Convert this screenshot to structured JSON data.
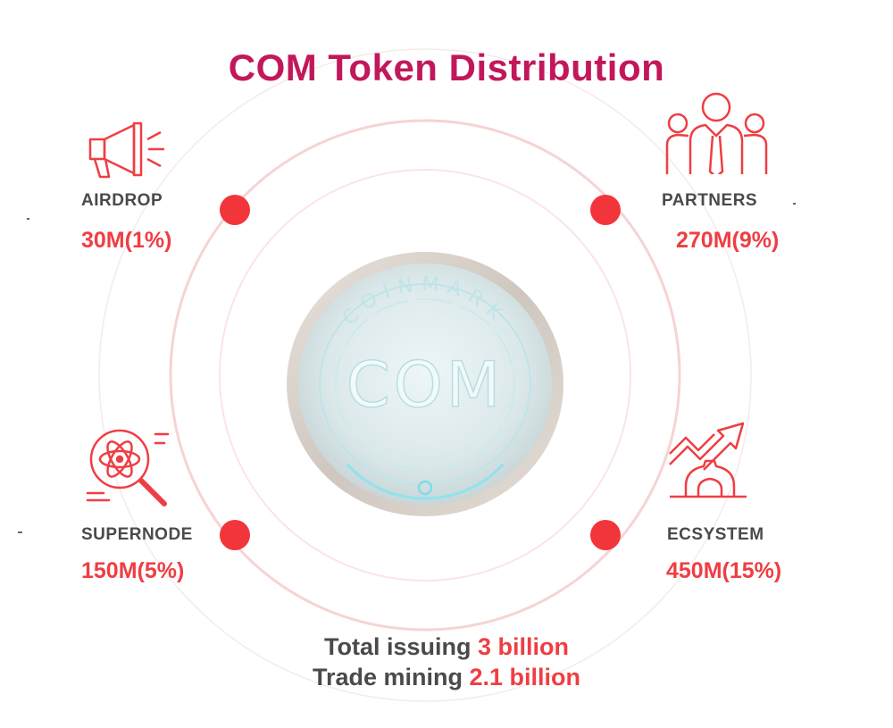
{
  "title": "COM Token Distribution",
  "coin": {
    "ring_text": "COINMARK",
    "center_text": "COM"
  },
  "items": [
    {
      "label": "AIRDROP",
      "value": "30M(1%)",
      "icon": "megaphone-icon"
    },
    {
      "label": "PARTNERS",
      "value": "270M(9%)",
      "icon": "people-icon"
    },
    {
      "label": "SUPERNODE",
      "value": "150M(5%)",
      "icon": "atom-search-icon"
    },
    {
      "label": "ECSYSTEM",
      "value": "450M(15%)",
      "icon": "growth-gear-icon"
    }
  ],
  "footer": {
    "line1_prefix": "Total issuing ",
    "line1_value": "3 billion",
    "line2_prefix": "Trade mining ",
    "line2_value": "2.1 billion"
  },
  "colors": {
    "title": "#c2185b",
    "accent": "#ef3e43",
    "label": "#4a4a4a",
    "dot": "#f2353a"
  }
}
